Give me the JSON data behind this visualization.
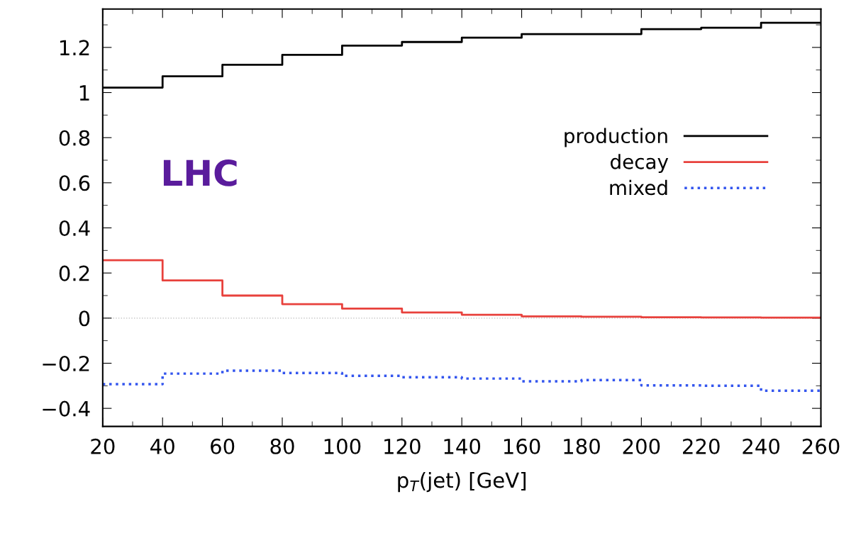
{
  "chart_data": {
    "type": "step",
    "xlabel": "p$_{T}$(jet) [GeV]",
    "x": [
      20,
      40,
      60,
      80,
      100,
      120,
      140,
      160,
      180,
      200,
      220,
      240,
      260
    ],
    "series": [
      {
        "name": "production",
        "color": "#000000",
        "line_style": "solid",
        "values": [
          1.022,
          1.072,
          1.123,
          1.167,
          1.208,
          1.224,
          1.243,
          1.259,
          1.259,
          1.281,
          1.287,
          1.309,
          1.309
        ]
      },
      {
        "name": "decay",
        "color": "#e8413c",
        "line_style": "solid",
        "values": [
          0.257,
          0.167,
          0.1,
          0.062,
          0.042,
          0.025,
          0.015,
          0.008,
          0.006,
          0.004,
          0.003,
          0.002,
          0.002
        ]
      },
      {
        "name": "mixed",
        "color": "#3355ee",
        "line_style": "dotted",
        "values": [
          -0.293,
          -0.246,
          -0.233,
          -0.243,
          -0.256,
          -0.262,
          -0.268,
          -0.28,
          -0.275,
          -0.298,
          -0.3,
          -0.322,
          -0.322
        ]
      }
    ],
    "xlim": [
      20,
      260
    ],
    "ylim": [
      -0.48,
      1.37
    ],
    "xticks": [
      20,
      40,
      60,
      80,
      100,
      120,
      140,
      160,
      180,
      200,
      220,
      240,
      260
    ],
    "yticks": [
      {
        "value": -0.4,
        "label": "−0.4"
      },
      {
        "value": -0.2,
        "label": "−0.2"
      },
      0,
      0.2,
      0.4,
      0.6,
      0.8,
      1,
      1.2
    ],
    "ref_lines": [
      {
        "axis": "y",
        "value": 0,
        "color": "#bbbbbb",
        "line_style": "dotted"
      }
    ],
    "annotations": [
      "LHC"
    ],
    "legend": "right",
    "grid": false
  }
}
